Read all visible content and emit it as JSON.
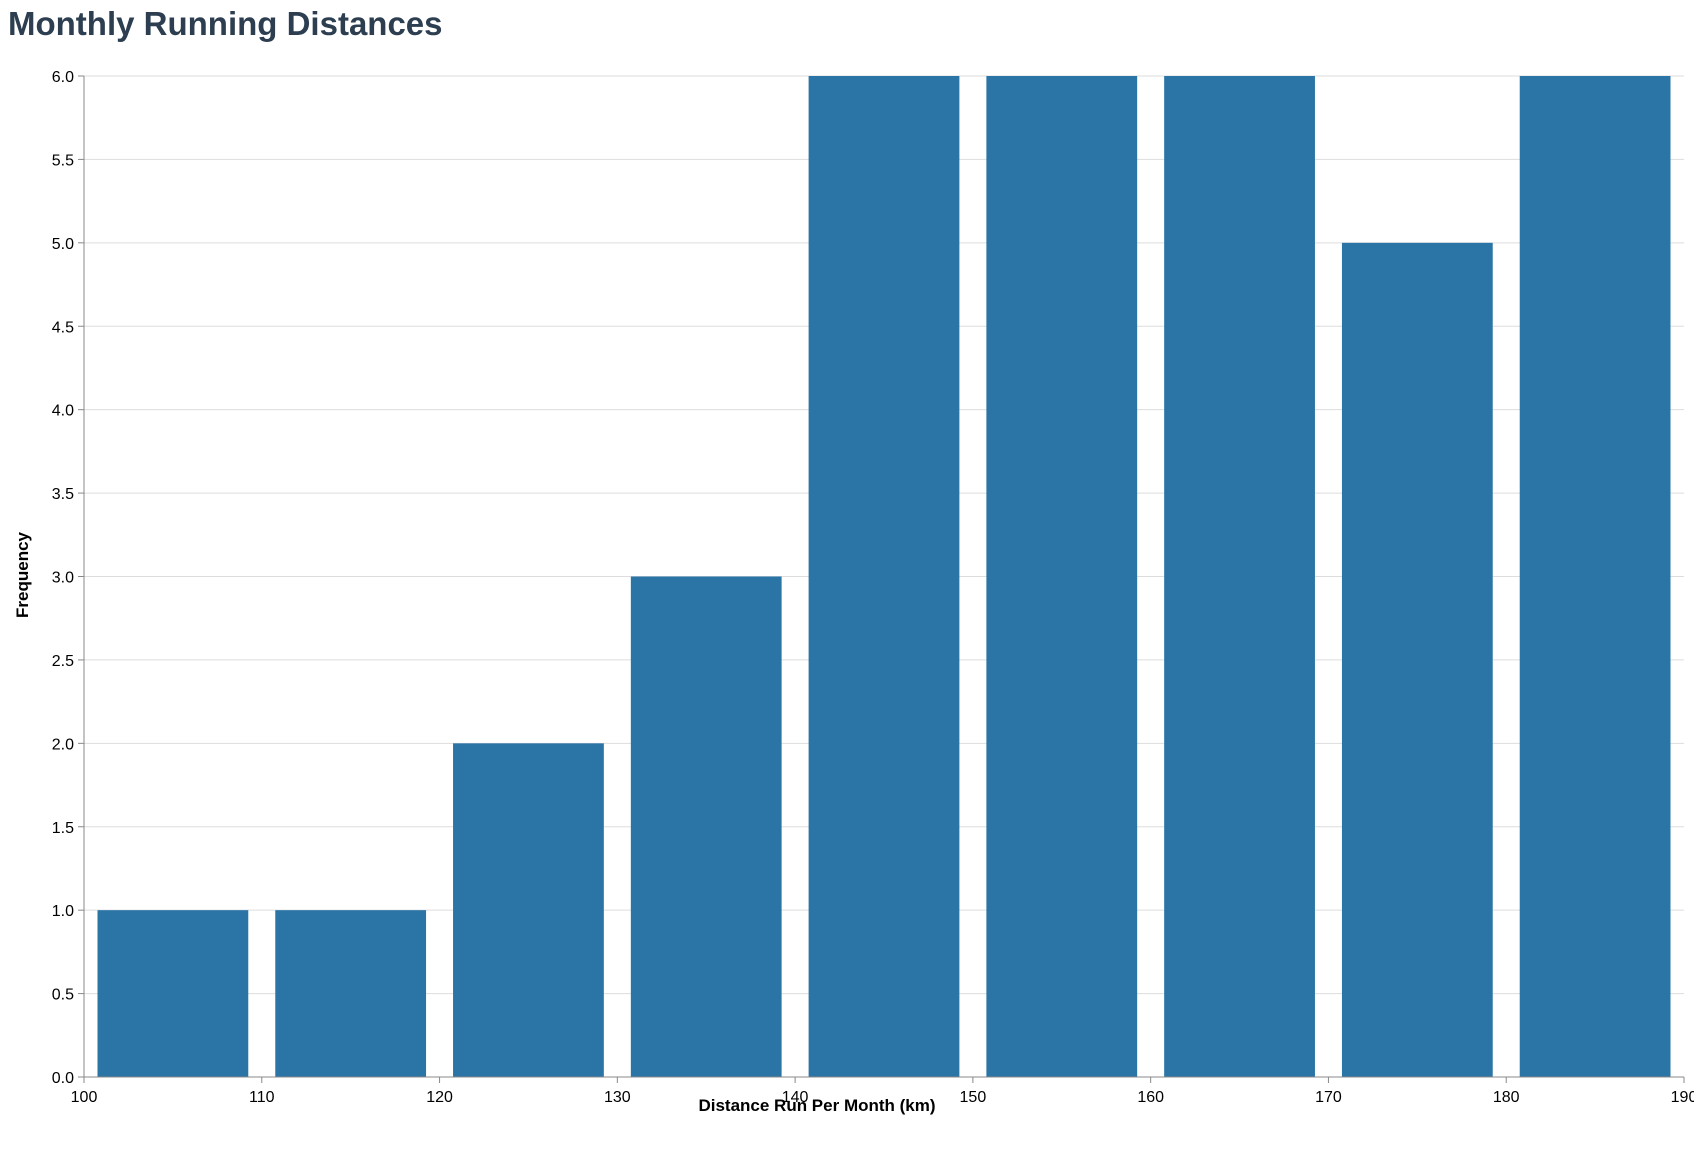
{
  "chart_data": {
    "type": "bar",
    "title": "Monthly Running Distances",
    "xlabel": "Distance Run Per Month (km)",
    "ylabel": "Frequency",
    "xlim": [
      100,
      190
    ],
    "ylim": [
      0,
      6
    ],
    "x_ticks": [
      100,
      110,
      120,
      130,
      140,
      150,
      160,
      170,
      180,
      190
    ],
    "y_ticks": [
      0.0,
      0.5,
      1.0,
      1.5,
      2.0,
      2.5,
      3.0,
      3.5,
      4.0,
      4.5,
      5.0,
      5.5,
      6.0
    ],
    "bins": [
      {
        "start": 100,
        "end": 110,
        "count": 1
      },
      {
        "start": 110,
        "end": 120,
        "count": 1
      },
      {
        "start": 120,
        "end": 130,
        "count": 2
      },
      {
        "start": 130,
        "end": 140,
        "count": 3
      },
      {
        "start": 140,
        "end": 150,
        "count": 6
      },
      {
        "start": 150,
        "end": 160,
        "count": 6
      },
      {
        "start": 160,
        "end": 170,
        "count": 6
      },
      {
        "start": 170,
        "end": 180,
        "count": 5
      },
      {
        "start": 180,
        "end": 190,
        "count": 6
      }
    ],
    "bar_color": "#2a74a6",
    "grid": true
  }
}
